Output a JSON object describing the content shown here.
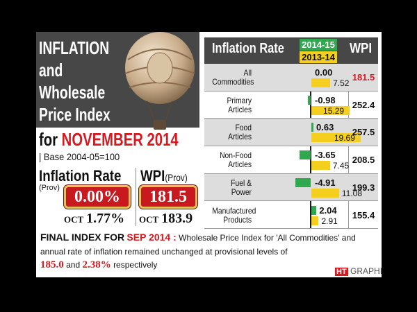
{
  "title_lines": [
    "INFLATION",
    "and",
    "Wholesale",
    "Price Index"
  ],
  "month_line": {
    "prefix": "for",
    "month": "NOVEMBER 2014"
  },
  "base": "| Base 2004-05=100",
  "inflation": {
    "label": "Inflation Rate",
    "prov": "(Prov)",
    "value": "0.00%",
    "oct_label": "OCT",
    "oct_value": "1.77%"
  },
  "wpi": {
    "label": "WPI",
    "prov": "(Prov)",
    "value": "181.5",
    "oct_label": "OCT",
    "oct_value": "183.9"
  },
  "colors": {
    "accent_red": "#d71920",
    "green_2014_15": "#2fa84f",
    "yellow_2013_14": "#f4cf1f",
    "dark_panel": "#474747"
  },
  "chart_data": {
    "type": "bar",
    "title": "Inflation Rate",
    "wpi_header": "WPI",
    "categories": [
      "All Commodities",
      "Primary Articles",
      "Food Articles",
      "Non-Food Articles",
      "Fuel & Power",
      "Manufactured Products"
    ],
    "category_lines": [
      [
        "All",
        "Commodities"
      ],
      [
        "Primary",
        "Articles"
      ],
      [
        "Food",
        "Articles"
      ],
      [
        "Non-Food",
        "Articles"
      ],
      [
        "Fuel &",
        "Power"
      ],
      [
        "Manufactured",
        "Products"
      ]
    ],
    "series": [
      {
        "name": "2014-15",
        "values": [
          0.0,
          -0.98,
          0.63,
          -3.65,
          -4.91,
          2.04
        ],
        "labels": [
          "0.00",
          "-0.98",
          "0.63",
          "-3.65",
          "-4.91",
          "2.04"
        ],
        "color": "#2fa84f"
      },
      {
        "name": "2013-14",
        "values": [
          7.52,
          15.29,
          19.69,
          7.45,
          11.08,
          2.91
        ],
        "labels": [
          "7.52",
          "15.29",
          "19.69",
          "7.45",
          "11.08",
          "2.91"
        ],
        "color": "#f4cf1f"
      }
    ],
    "wpi": [
      "181.5",
      "252.4",
      "257.5",
      "208.5",
      "199.3",
      "155.4"
    ],
    "highlight_index": 0
  },
  "footer": {
    "label": "FINAL INDEX FOR",
    "period": "SEP 2014 :",
    "text1": "Wholesale Price Index for 'All Commodities' and",
    "text2": "annual rate of inflation remained unchanged at provisional levels of",
    "val1": "185.0",
    "and": "and",
    "val2": "2.38%",
    "tail": "respectively"
  },
  "credit": {
    "brand": "HT",
    "text": "GRAPHICS"
  }
}
